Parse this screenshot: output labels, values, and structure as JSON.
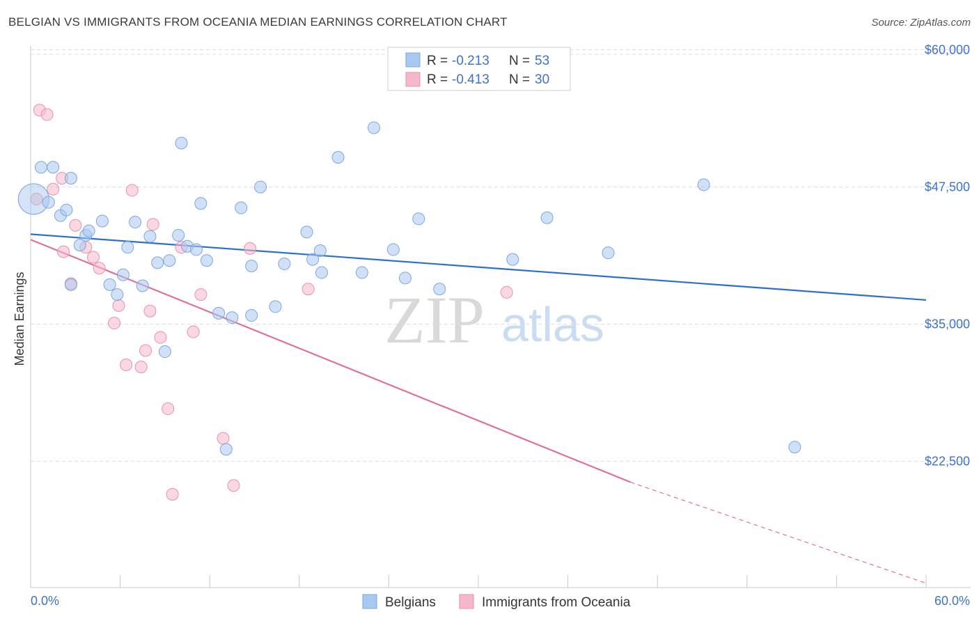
{
  "title": "BELGIAN VS IMMIGRANTS FROM OCEANIA MEDIAN EARNINGS CORRELATION CHART",
  "source": "Source: ZipAtlas.com",
  "watermark": {
    "zip": "ZIP",
    "atlas": "atlas"
  },
  "legend_top": {
    "r_label": "R =",
    "n_label": "N =",
    "rows": [
      {
        "r": "-0.213",
        "n": "53",
        "color": "#a9c8f0"
      },
      {
        "r": "-0.413",
        "n": "30",
        "color": "#f5b8ca"
      }
    ]
  },
  "legend_bottom": [
    {
      "label": "Belgians",
      "color": "#a9c8f0"
    },
    {
      "label": "Immigrants from Oceania",
      "color": "#f5b8ca"
    }
  ],
  "chart_data": {
    "type": "scatter",
    "title": "BELGIAN VS IMMIGRANTS FROM OCEANIA MEDIAN EARNINGS CORRELATION CHART",
    "xlabel": "",
    "ylabel": "Median Earnings",
    "xlim": [
      0,
      60
    ],
    "ylim": [
      11000,
      62000
    ],
    "x_tick_labels": [
      "0.0%",
      "60.0%"
    ],
    "y_ticks": [
      22500,
      35000,
      47500,
      60000
    ],
    "y_tick_labels": [
      "$22,500",
      "$35,000",
      "$47,500",
      "$60,000"
    ],
    "grid": true,
    "colors": {
      "belgians_fill": "#a9c8f0",
      "belgians_line": "#2b6fcf",
      "oceania_fill": "#f5b8ca",
      "oceania_line": "#e0709a"
    },
    "series": [
      {
        "name": "Belgians",
        "trend": {
          "x": [
            0,
            60
          ],
          "y": [
            43200,
            37200
          ]
        },
        "points": [
          [
            0.2,
            46400
          ],
          [
            0.7,
            49300
          ],
          [
            1.2,
            46100
          ],
          [
            1.5,
            49300
          ],
          [
            2.0,
            44900
          ],
          [
            2.4,
            45400
          ],
          [
            2.7,
            38600
          ],
          [
            2.7,
            48300
          ],
          [
            3.3,
            42200
          ],
          [
            3.7,
            43100
          ],
          [
            3.9,
            43500
          ],
          [
            4.8,
            44400
          ],
          [
            5.3,
            38600
          ],
          [
            5.8,
            37700
          ],
          [
            6.2,
            39500
          ],
          [
            6.5,
            42000
          ],
          [
            7.0,
            44300
          ],
          [
            7.5,
            38500
          ],
          [
            8.0,
            43000
          ],
          [
            8.5,
            40600
          ],
          [
            9.0,
            32500
          ],
          [
            9.3,
            40800
          ],
          [
            9.9,
            43100
          ],
          [
            10.1,
            51500
          ],
          [
            10.5,
            42100
          ],
          [
            11.1,
            41800
          ],
          [
            11.4,
            46000
          ],
          [
            11.8,
            40800
          ],
          [
            12.6,
            36000
          ],
          [
            13.1,
            23600
          ],
          [
            13.5,
            35600
          ],
          [
            14.1,
            45600
          ],
          [
            14.8,
            40300
          ],
          [
            14.8,
            35800
          ],
          [
            15.4,
            47500
          ],
          [
            16.4,
            36600
          ],
          [
            17.0,
            40500
          ],
          [
            18.5,
            43400
          ],
          [
            18.9,
            40900
          ],
          [
            19.4,
            41700
          ],
          [
            19.5,
            39700
          ],
          [
            20.6,
            50200
          ],
          [
            22.2,
            39700
          ],
          [
            23.0,
            52900
          ],
          [
            24.3,
            41800
          ],
          [
            25.1,
            39200
          ],
          [
            26.0,
            44600
          ],
          [
            27.4,
            38200
          ],
          [
            32.3,
            40900
          ],
          [
            34.6,
            44700
          ],
          [
            38.7,
            41500
          ],
          [
            45.1,
            47700
          ],
          [
            51.2,
            23800
          ]
        ]
      },
      {
        "name": "Immigrants from Oceania",
        "trend": {
          "x": [
            0,
            40.2
          ],
          "y": [
            42700,
            20600
          ]
        },
        "dashed_extension": {
          "x": [
            40.2,
            60
          ],
          "y": [
            20600,
            11400
          ]
        },
        "points": [
          [
            0.4,
            46400
          ],
          [
            0.6,
            54500
          ],
          [
            1.1,
            54100
          ],
          [
            1.5,
            47300
          ],
          [
            2.1,
            48300
          ],
          [
            2.2,
            41600
          ],
          [
            2.7,
            38700
          ],
          [
            3.0,
            44000
          ],
          [
            3.7,
            42000
          ],
          [
            4.2,
            41100
          ],
          [
            4.6,
            40100
          ],
          [
            5.6,
            35100
          ],
          [
            5.9,
            36700
          ],
          [
            6.4,
            31300
          ],
          [
            6.8,
            47200
          ],
          [
            7.4,
            31100
          ],
          [
            7.7,
            32600
          ],
          [
            8.0,
            36200
          ],
          [
            8.2,
            44100
          ],
          [
            8.7,
            33800
          ],
          [
            9.2,
            27300
          ],
          [
            9.5,
            19500
          ],
          [
            10.1,
            42000
          ],
          [
            10.9,
            34300
          ],
          [
            11.4,
            37700
          ],
          [
            12.9,
            24600
          ],
          [
            13.6,
            20300
          ],
          [
            14.7,
            41900
          ],
          [
            18.6,
            38200
          ],
          [
            31.9,
            37900
          ]
        ]
      }
    ]
  }
}
